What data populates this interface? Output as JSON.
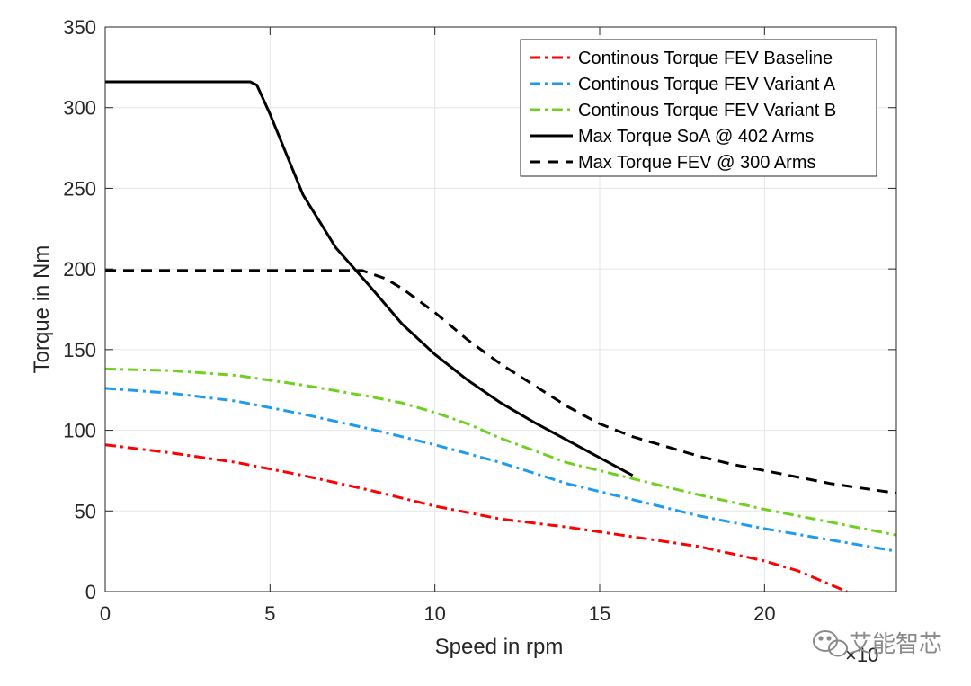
{
  "chart_data": {
    "type": "line",
    "title": "",
    "xlabel": "Speed in rpm",
    "ylabel": "Torque in Nm",
    "x_exponent_label": "×10",
    "xlim": [
      0,
      24
    ],
    "ylim": [
      0,
      350
    ],
    "xticks": [
      0,
      5,
      10,
      15,
      20
    ],
    "yticks": [
      0,
      50,
      100,
      150,
      200,
      250,
      300,
      350
    ],
    "grid": true,
    "legend_position": "top-right",
    "series": [
      {
        "name": "Continous Torque FEV Baseline",
        "color": "#ff0000",
        "style": "dashdot",
        "x": [
          0,
          2,
          4,
          6,
          8,
          10,
          12,
          14,
          16,
          18,
          20,
          21,
          22.5
        ],
        "y": [
          91,
          86,
          80,
          72,
          63,
          53,
          45,
          40,
          34,
          28,
          19,
          13,
          0
        ]
      },
      {
        "name": "Continous Torque FEV Variant A",
        "color": "#1e9bf0",
        "style": "dashdot",
        "x": [
          0,
          2,
          4,
          6,
          8,
          10,
          12,
          14,
          16,
          18,
          20,
          22,
          24
        ],
        "y": [
          126,
          123,
          118,
          110,
          101,
          91,
          80,
          67,
          57,
          47,
          39,
          32,
          25
        ]
      },
      {
        "name": "Continous Torque FEV Variant B",
        "color": "#6fd020",
        "style": "dashdot",
        "x": [
          0,
          2,
          4,
          6,
          8,
          9,
          10,
          11,
          12,
          14,
          16,
          18,
          20,
          22,
          24
        ],
        "y": [
          138,
          137,
          134,
          128,
          121,
          117,
          111,
          104,
          95,
          80,
          70,
          60,
          51,
          43,
          35
        ]
      },
      {
        "name": "Max Torque SoA @ 402 Arms",
        "color": "#000000",
        "style": "solid",
        "x": [
          0,
          2,
          4.4,
          4.6,
          5,
          6,
          7,
          8,
          9,
          10,
          11,
          12,
          13,
          14,
          15,
          16
        ],
        "y": [
          316,
          316,
          316,
          314,
          296,
          246,
          213,
          190,
          166,
          147,
          131,
          117,
          105,
          94,
          83,
          72
        ]
      },
      {
        "name": "Max Torque FEV @ 300 Arms",
        "color": "#000000",
        "style": "dashed",
        "x": [
          0,
          2,
          4,
          6,
          7.8,
          8.5,
          9,
          10,
          11,
          12,
          13,
          14,
          15,
          16,
          17,
          18,
          19,
          20,
          21,
          22,
          23,
          24
        ],
        "y": [
          199,
          199,
          199,
          199,
          199,
          194,
          188,
          173,
          156,
          141,
          128,
          115,
          104,
          96,
          90,
          84,
          79,
          75,
          71,
          67,
          64,
          61
        ]
      }
    ]
  },
  "watermark": {
    "text": "艾能智芯",
    "icon": "wechat-icon"
  }
}
